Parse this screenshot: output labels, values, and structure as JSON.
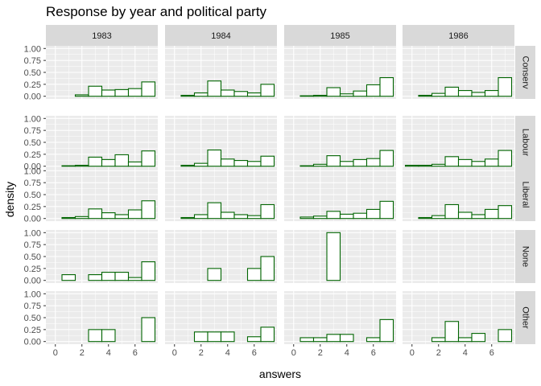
{
  "chart_data": {
    "type": "bar",
    "title": "Response by year and political party",
    "xlabel": "answers",
    "ylabel": "density",
    "xlim": [
      -0.5,
      7.5
    ],
    "ylim": [
      0,
      1.0
    ],
    "xticks": [
      0,
      2,
      4,
      6
    ],
    "yticks": [
      0,
      0.25,
      0.5,
      0.75,
      1.0
    ],
    "xtick_labels": [
      "0",
      "2",
      "4",
      "6"
    ],
    "ytick_labels": [
      "0.00",
      "0.25",
      "0.50",
      "0.75",
      "1.00"
    ],
    "bins": [
      0,
      1,
      2,
      3,
      4,
      5,
      6,
      7
    ],
    "bin_width": 1,
    "colors": {
      "bar_outline": "#006400",
      "bar_fill": "#ffffff",
      "panel_bg": "#ebebeb",
      "strip_bg": "#d9d9d9",
      "grid": "#ffffff"
    },
    "years": [
      "1983",
      "1984",
      "1985",
      "1986"
    ],
    "parties": [
      "Conserv",
      "Labour",
      "Liberal",
      "None",
      "Other"
    ],
    "panels": [
      {
        "year": "1983",
        "party": "Conserv",
        "values": [
          0.0,
          0.0,
          0.03,
          0.21,
          0.13,
          0.14,
          0.16,
          0.3
        ]
      },
      {
        "year": "1984",
        "party": "Conserv",
        "values": [
          0.0,
          0.02,
          0.07,
          0.32,
          0.13,
          0.1,
          0.07,
          0.25
        ]
      },
      {
        "year": "1985",
        "party": "Conserv",
        "values": [
          0.0,
          0.01,
          0.02,
          0.18,
          0.05,
          0.11,
          0.24,
          0.39
        ]
      },
      {
        "year": "1986",
        "party": "Conserv",
        "values": [
          0.0,
          0.02,
          0.06,
          0.19,
          0.12,
          0.08,
          0.12,
          0.39
        ]
      },
      {
        "year": "1983",
        "party": "Labour",
        "values": [
          0.0,
          0.01,
          0.02,
          0.19,
          0.14,
          0.24,
          0.09,
          0.32
        ]
      },
      {
        "year": "1984",
        "party": "Labour",
        "values": [
          0.0,
          0.02,
          0.06,
          0.34,
          0.15,
          0.12,
          0.1,
          0.21
        ]
      },
      {
        "year": "1985",
        "party": "Labour",
        "values": [
          0.0,
          0.01,
          0.04,
          0.22,
          0.1,
          0.14,
          0.16,
          0.33
        ]
      },
      {
        "year": "1986",
        "party": "Labour",
        "values": [
          0.02,
          0.02,
          0.04,
          0.2,
          0.14,
          0.1,
          0.15,
          0.33
        ]
      },
      {
        "year": "1983",
        "party": "Liberal",
        "values": [
          0.0,
          0.02,
          0.04,
          0.2,
          0.12,
          0.08,
          0.18,
          0.37
        ]
      },
      {
        "year": "1984",
        "party": "Liberal",
        "values": [
          0.0,
          0.02,
          0.08,
          0.33,
          0.13,
          0.08,
          0.06,
          0.29
        ]
      },
      {
        "year": "1985",
        "party": "Liberal",
        "values": [
          0.0,
          0.03,
          0.05,
          0.15,
          0.09,
          0.11,
          0.19,
          0.36
        ]
      },
      {
        "year": "1986",
        "party": "Liberal",
        "values": [
          0.0,
          0.02,
          0.06,
          0.29,
          0.13,
          0.08,
          0.19,
          0.27
        ]
      },
      {
        "year": "1983",
        "party": "None",
        "values": [
          0.0,
          0.12,
          0.0,
          0.12,
          0.17,
          0.17,
          0.06,
          0.39
        ]
      },
      {
        "year": "1984",
        "party": "None",
        "values": [
          0.0,
          0.0,
          0.0,
          0.25,
          0.0,
          0.0,
          0.25,
          0.5
        ]
      },
      {
        "year": "1985",
        "party": "None",
        "values": [
          0.0,
          0.0,
          0.0,
          1.0,
          0.0,
          0.0,
          0.0,
          0.0
        ]
      },
      {
        "year": "1986",
        "party": "None",
        "values": []
      },
      {
        "year": "1983",
        "party": "Other",
        "values": [
          0.0,
          0.0,
          0.0,
          0.25,
          0.25,
          0.0,
          0.0,
          0.5
        ]
      },
      {
        "year": "1984",
        "party": "Other",
        "values": [
          0.0,
          0.0,
          0.2,
          0.2,
          0.2,
          0.0,
          0.1,
          0.3
        ]
      },
      {
        "year": "1985",
        "party": "Other",
        "values": [
          0.0,
          0.08,
          0.08,
          0.15,
          0.15,
          0.0,
          0.08,
          0.46
        ]
      },
      {
        "year": "1986",
        "party": "Other",
        "values": [
          0.0,
          0.0,
          0.08,
          0.42,
          0.08,
          0.17,
          0.0,
          0.25
        ]
      }
    ]
  }
}
